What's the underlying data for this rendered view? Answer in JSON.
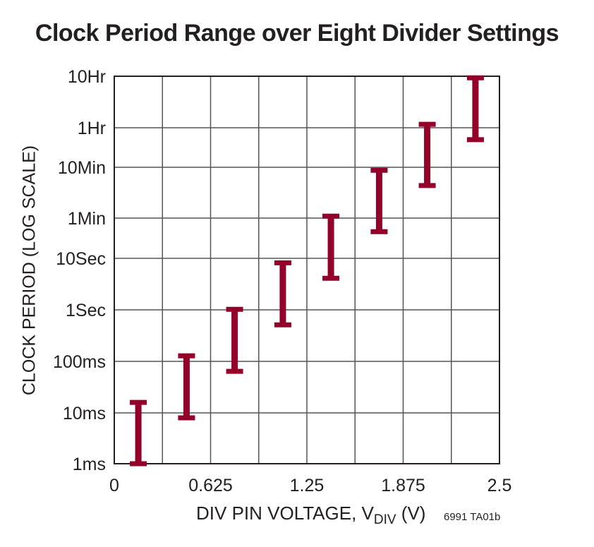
{
  "chart_data": {
    "type": "range_bar",
    "title": "Clock Period Range over Eight Divider Settings",
    "ylabel": "CLOCK PERIOD (LOG SCALE)",
    "xlabel": {
      "prefix": "DIV PIN VOLTAGE, V",
      "subscript": "DIV",
      "suffix": " (V)"
    },
    "footnote": "6991 TA01b",
    "x_ticks": [
      "0",
      "0.625",
      "1.25",
      "1.875",
      "2.5"
    ],
    "xlim": [
      0,
      2.5
    ],
    "y_scale": "log",
    "y_unit": "seconds",
    "y_ticks": [
      {
        "label": "1ms",
        "value": 0.001
      },
      {
        "label": "10ms",
        "value": 0.01
      },
      {
        "label": "100ms",
        "value": 0.1
      },
      {
        "label": "1Sec",
        "value": 1
      },
      {
        "label": "10Sec",
        "value": 10
      },
      {
        "label": "1Min",
        "value": 60
      },
      {
        "label": "10Min",
        "value": 600
      },
      {
        "label": "1Hr",
        "value": 3600
      },
      {
        "label": "10Hr",
        "value": 36000
      }
    ],
    "grid": true,
    "color": "#93002a",
    "series": [
      {
        "values": [
          {
            "x": 0.156,
            "low": 0.001,
            "high": 0.016
          },
          {
            "x": 0.469,
            "low": 0.008,
            "high": 0.128
          },
          {
            "x": 0.781,
            "low": 0.064,
            "high": 1.024
          },
          {
            "x": 1.094,
            "low": 0.512,
            "high": 8.19
          },
          {
            "x": 1.406,
            "low": 4.1,
            "high": 65.5
          },
          {
            "x": 1.719,
            "low": 32.8,
            "high": 524
          },
          {
            "x": 2.031,
            "low": 262,
            "high": 4194
          },
          {
            "x": 2.344,
            "low": 2097,
            "high": 33554
          }
        ]
      }
    ]
  }
}
